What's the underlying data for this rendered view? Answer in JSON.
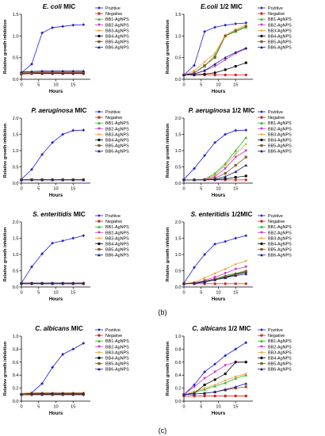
{
  "figure": {
    "panel_labels": [
      "(b)",
      "(c)"
    ]
  },
  "legend_labels": [
    "Pozitive",
    "Negative",
    "BB1-AgNPS",
    "BB2-AgNPS",
    "BB3-AgNPS",
    "BB4-AgNPS",
    "BB5-AgNPS",
    "BB6-AgNPS"
  ],
  "colors": {
    "Pozitive": "#1f1fe0",
    "Negative": "#e02020",
    "BB1-AgNPS": "#22bb22",
    "BB2-AgNPS": "#cc33cc",
    "BB3-AgNPS": "#f0a030",
    "BB4-AgNPS": "#111111",
    "BB5-AgNPS": "#8b5a2b",
    "BB6-AgNPS": "#1a1a8c"
  },
  "chart_data": [
    {
      "type": "line",
      "title_italic": "E. coli",
      "title_rest": " MIC",
      "xlabel": "Hours",
      "ylabel": "Relative growth inhibition",
      "xlim": [
        0,
        20
      ],
      "ylim": [
        0,
        1.5
      ],
      "xticks": [
        0,
        5,
        10,
        15
      ],
      "yticks": [
        0.0,
        0.5,
        1.0,
        1.5
      ],
      "xticklabels": [
        "0",
        "5",
        "10",
        "15"
      ],
      "yticklabels": [
        "0.0",
        "0.5",
        "1.0",
        "1.5"
      ],
      "x": [
        0,
        3,
        6,
        9,
        12,
        15,
        18
      ],
      "series": [
        {
          "name": "Pozitive",
          "values": [
            0.15,
            0.35,
            1.07,
            1.19,
            1.22,
            1.25,
            1.26
          ]
        },
        {
          "name": "Negative",
          "values": [
            0.12,
            0.13,
            0.13,
            0.13,
            0.13,
            0.13,
            0.13
          ]
        },
        {
          "name": "BB1-AgNPS",
          "values": [
            0.15,
            0.16,
            0.17,
            0.17,
            0.17,
            0.17,
            0.17
          ]
        },
        {
          "name": "BB2-AgNPS",
          "values": [
            0.14,
            0.15,
            0.15,
            0.15,
            0.15,
            0.15,
            0.15
          ]
        },
        {
          "name": "BB3-AgNPS",
          "values": [
            0.16,
            0.17,
            0.18,
            0.18,
            0.18,
            0.18,
            0.18
          ]
        },
        {
          "name": "BB4-AgNPS",
          "values": [
            0.13,
            0.14,
            0.14,
            0.14,
            0.14,
            0.14,
            0.14
          ]
        },
        {
          "name": "BB5-AgNPS",
          "values": [
            0.14,
            0.15,
            0.16,
            0.16,
            0.16,
            0.16,
            0.16
          ]
        },
        {
          "name": "BB6-AgNPS",
          "values": [
            0.17,
            0.18,
            0.19,
            0.19,
            0.19,
            0.19,
            0.19
          ]
        }
      ]
    },
    {
      "type": "line",
      "title_italic": "E.coli",
      "title_rest": " 1/2 MIC",
      "xlabel": "Hours",
      "ylabel": "Relative growth inhibition",
      "xlim": [
        0,
        20
      ],
      "ylim": [
        0,
        1.5
      ],
      "xticks": [
        0,
        5,
        10,
        15
      ],
      "yticks": [
        0.0,
        0.5,
        1.0,
        1.5
      ],
      "xticklabels": [
        "0",
        "5",
        "10",
        "15"
      ],
      "yticklabels": [
        "0.0",
        "0.5",
        "1.0",
        "1.5"
      ],
      "x": [
        0,
        3,
        6,
        9,
        12,
        15,
        18
      ],
      "series": [
        {
          "name": "Pozitive",
          "values": [
            0.1,
            0.32,
            1.1,
            1.2,
            1.25,
            1.28,
            1.3
          ]
        },
        {
          "name": "Negative",
          "values": [
            0.1,
            0.1,
            0.1,
            0.1,
            0.1,
            0.1,
            0.1
          ]
        },
        {
          "name": "BB1-AgNPS",
          "values": [
            0.1,
            0.15,
            0.3,
            0.55,
            1.0,
            1.1,
            1.2
          ]
        },
        {
          "name": "BB2-AgNPS",
          "values": [
            0.1,
            0.12,
            0.2,
            0.3,
            0.45,
            0.6,
            0.7
          ]
        },
        {
          "name": "BB3-AgNPS",
          "values": [
            0.1,
            0.2,
            0.4,
            0.6,
            1.02,
            1.15,
            1.25
          ]
        },
        {
          "name": "BB4-AgNPS",
          "values": [
            0.1,
            0.1,
            0.12,
            0.15,
            0.22,
            0.3,
            0.38
          ]
        },
        {
          "name": "BB5-AgNPS",
          "values": [
            0.1,
            0.15,
            0.32,
            0.5,
            1.0,
            1.12,
            1.22
          ]
        },
        {
          "name": "BB6-AgNPS",
          "values": [
            0.1,
            0.12,
            0.2,
            0.35,
            0.5,
            0.62,
            0.72
          ]
        }
      ]
    },
    {
      "type": "line",
      "title_italic": "P. aeruginosa",
      "title_rest": " MIC",
      "xlabel": "Hours",
      "ylabel": "Relative growth inhibition",
      "xlim": [
        0,
        20
      ],
      "ylim": [
        0,
        2.0
      ],
      "xticks": [
        0,
        5,
        10,
        15
      ],
      "yticks": [
        0.0,
        0.5,
        1.0,
        1.5,
        2.0
      ],
      "xticklabels": [
        "0",
        "5",
        "10",
        "15"
      ],
      "yticklabels": [
        "0.0",
        "0.5",
        "1.0",
        "1.5",
        "2.0"
      ],
      "x": [
        0,
        3,
        6,
        9,
        12,
        15,
        18
      ],
      "series": [
        {
          "name": "Pozitive",
          "values": [
            0.12,
            0.42,
            0.88,
            1.25,
            1.5,
            1.62,
            1.63
          ]
        },
        {
          "name": "Negative",
          "values": [
            0.1,
            0.1,
            0.1,
            0.1,
            0.1,
            0.1,
            0.1
          ]
        },
        {
          "name": "BB1-AgNPS",
          "values": [
            0.11,
            0.11,
            0.11,
            0.11,
            0.11,
            0.11,
            0.11
          ]
        },
        {
          "name": "BB2-AgNPS",
          "values": [
            0.1,
            0.1,
            0.1,
            0.1,
            0.1,
            0.1,
            0.1
          ]
        },
        {
          "name": "BB3-AgNPS",
          "values": [
            0.11,
            0.11,
            0.11,
            0.11,
            0.11,
            0.11,
            0.11
          ]
        },
        {
          "name": "BB4-AgNPS",
          "values": [
            0.1,
            0.1,
            0.1,
            0.1,
            0.1,
            0.1,
            0.1
          ]
        },
        {
          "name": "BB5-AgNPS",
          "values": [
            0.11,
            0.11,
            0.11,
            0.11,
            0.11,
            0.11,
            0.11
          ]
        },
        {
          "name": "BB6-AgNPS",
          "values": [
            0.1,
            0.1,
            0.1,
            0.1,
            0.1,
            0.1,
            0.1
          ]
        }
      ]
    },
    {
      "type": "line",
      "title_italic": "P. aeruginosa",
      "title_rest": " 1/2 MIC",
      "xlabel": "Hours",
      "ylabel": "Relative growth inhibition",
      "xlim": [
        0,
        20
      ],
      "ylim": [
        0,
        2.0
      ],
      "xticks": [
        0,
        5,
        10,
        15
      ],
      "yticks": [
        0.0,
        0.5,
        1.0,
        1.5,
        2.0
      ],
      "xticklabels": [
        "0",
        "5",
        "10",
        "15"
      ],
      "yticklabels": [
        "0.0",
        "0.5",
        "1.0",
        "1.5",
        "2.0"
      ],
      "x": [
        0,
        3,
        6,
        9,
        12,
        15,
        18
      ],
      "series": [
        {
          "name": "Pozitive",
          "values": [
            0.12,
            0.45,
            0.85,
            1.25,
            1.5,
            1.62,
            1.63
          ]
        },
        {
          "name": "Negative",
          "values": [
            0.1,
            0.1,
            0.1,
            0.1,
            0.1,
            0.1,
            0.1
          ]
        },
        {
          "name": "BB1-AgNPS",
          "values": [
            0.1,
            0.1,
            0.12,
            0.3,
            0.6,
            1.0,
            1.4
          ]
        },
        {
          "name": "BB2-AgNPS",
          "values": [
            0.1,
            0.1,
            0.11,
            0.2,
            0.45,
            0.8,
            1.0
          ]
        },
        {
          "name": "BB3-AgNPS",
          "values": [
            0.1,
            0.1,
            0.12,
            0.25,
            0.55,
            0.9,
            1.2
          ]
        },
        {
          "name": "BB4-AgNPS",
          "values": [
            0.1,
            0.1,
            0.1,
            0.11,
            0.13,
            0.18,
            0.22
          ]
        },
        {
          "name": "BB5-AgNPS",
          "values": [
            0.1,
            0.1,
            0.11,
            0.15,
            0.3,
            0.55,
            0.8
          ]
        },
        {
          "name": "BB6-AgNPS",
          "values": [
            0.1,
            0.1,
            0.1,
            0.12,
            0.2,
            0.35,
            0.55
          ]
        }
      ]
    },
    {
      "type": "line",
      "title_italic": "S. enteritidis",
      "title_rest": " MIC",
      "xlabel": "Hours",
      "ylabel": "Relative growth inhibition",
      "xlim": [
        0,
        20
      ],
      "ylim": [
        0,
        2.0
      ],
      "xticks": [
        0,
        5,
        10,
        15
      ],
      "yticks": [
        0.0,
        0.5,
        1.0,
        1.5,
        2.0
      ],
      "xticklabels": [
        "0",
        "5",
        "10",
        "15"
      ],
      "yticklabels": [
        "0.0",
        "0.5",
        "1.0",
        "1.5",
        "2.0"
      ],
      "x": [
        0,
        3,
        6,
        9,
        12,
        15,
        18
      ],
      "series": [
        {
          "name": "Pozitive",
          "values": [
            0.12,
            0.62,
            1.02,
            1.35,
            1.42,
            1.5,
            1.58
          ]
        },
        {
          "name": "Negative",
          "values": [
            0.1,
            0.1,
            0.1,
            0.1,
            0.1,
            0.1,
            0.1
          ]
        },
        {
          "name": "BB1-AgNPS",
          "values": [
            0.11,
            0.11,
            0.11,
            0.11,
            0.11,
            0.11,
            0.11
          ]
        },
        {
          "name": "BB2-AgNPS",
          "values": [
            0.1,
            0.1,
            0.1,
            0.1,
            0.1,
            0.1,
            0.1
          ]
        },
        {
          "name": "BB3-AgNPS",
          "values": [
            0.12,
            0.12,
            0.12,
            0.12,
            0.12,
            0.12,
            0.12
          ]
        },
        {
          "name": "BB4-AgNPS",
          "values": [
            0.1,
            0.1,
            0.1,
            0.1,
            0.1,
            0.1,
            0.1
          ]
        },
        {
          "name": "BB5-AgNPS",
          "values": [
            0.11,
            0.11,
            0.11,
            0.11,
            0.11,
            0.11,
            0.11
          ]
        },
        {
          "name": "BB6-AgNPS",
          "values": [
            0.12,
            0.12,
            0.12,
            0.12,
            0.12,
            0.12,
            0.12
          ]
        }
      ]
    },
    {
      "type": "line",
      "title_italic": "S. enteritidis",
      "title_rest": " 1/2MIC",
      "xlabel": "Hours",
      "ylabel": "Relative growth inhibition",
      "xlim": [
        0,
        20
      ],
      "ylim": [
        0,
        2.0
      ],
      "xticks": [
        0,
        5,
        10,
        15
      ],
      "yticks": [
        0.0,
        0.5,
        1.0,
        1.5,
        2.0
      ],
      "xticklabels": [
        "0",
        "5",
        "10",
        "15"
      ],
      "yticklabels": [
        "0.0",
        "0.5",
        "1.0",
        "1.5",
        "2.0"
      ],
      "x": [
        0,
        3,
        6,
        9,
        12,
        15,
        18
      ],
      "series": [
        {
          "name": "Pozitive",
          "values": [
            0.12,
            0.6,
            1.0,
            1.32,
            1.4,
            1.5,
            1.58
          ]
        },
        {
          "name": "Negative",
          "values": [
            0.1,
            0.1,
            0.1,
            0.1,
            0.1,
            0.1,
            0.1
          ]
        },
        {
          "name": "BB1-AgNPS",
          "values": [
            0.1,
            0.12,
            0.18,
            0.25,
            0.35,
            0.42,
            0.5
          ]
        },
        {
          "name": "BB2-AgNPS",
          "values": [
            0.1,
            0.13,
            0.2,
            0.3,
            0.42,
            0.55,
            0.62
          ]
        },
        {
          "name": "BB3-AgNPS",
          "values": [
            0.1,
            0.15,
            0.28,
            0.42,
            0.55,
            0.7,
            0.8
          ]
        },
        {
          "name": "BB4-AgNPS",
          "values": [
            0.1,
            0.11,
            0.15,
            0.22,
            0.3,
            0.38,
            0.45
          ]
        },
        {
          "name": "BB5-AgNPS",
          "values": [
            0.1,
            0.12,
            0.17,
            0.24,
            0.32,
            0.4,
            0.48
          ]
        },
        {
          "name": "BB6-AgNPS",
          "values": [
            0.1,
            0.11,
            0.16,
            0.22,
            0.28,
            0.35,
            0.4
          ]
        }
      ]
    },
    {
      "type": "line",
      "title_italic": "C. albicans",
      "title_rest": " MIC",
      "xlabel": "Hours",
      "ylabel": "Relative growth inhibition",
      "xlim": [
        0,
        20
      ],
      "ylim": [
        0,
        1.0
      ],
      "xticks": [
        0,
        5,
        10,
        15
      ],
      "yticks": [
        0.0,
        0.2,
        0.4,
        0.6,
        0.8,
        1.0
      ],
      "xticklabels": [
        "0",
        "5",
        "10",
        "15"
      ],
      "yticklabels": [
        "0.0",
        "0.2",
        "0.4",
        "0.6",
        "0.8",
        "1.0"
      ],
      "x": [
        0,
        3,
        6,
        9,
        12,
        15,
        18
      ],
      "series": [
        {
          "name": "Pozitive",
          "values": [
            0.1,
            0.13,
            0.27,
            0.52,
            0.72,
            0.8,
            0.89
          ]
        },
        {
          "name": "Negative",
          "values": [
            0.1,
            0.1,
            0.1,
            0.1,
            0.1,
            0.1,
            0.1
          ]
        },
        {
          "name": "BB1-AgNPS",
          "values": [
            0.11,
            0.12,
            0.12,
            0.12,
            0.12,
            0.12,
            0.12
          ]
        },
        {
          "name": "BB2-AgNPS",
          "values": [
            0.1,
            0.11,
            0.11,
            0.11,
            0.11,
            0.11,
            0.11
          ]
        },
        {
          "name": "BB3-AgNPS",
          "values": [
            0.12,
            0.13,
            0.13,
            0.13,
            0.13,
            0.13,
            0.13
          ]
        },
        {
          "name": "BB4-AgNPS",
          "values": [
            0.1,
            0.1,
            0.1,
            0.1,
            0.1,
            0.1,
            0.1
          ]
        },
        {
          "name": "BB5-AgNPS",
          "values": [
            0.1,
            0.11,
            0.11,
            0.11,
            0.11,
            0.11,
            0.11
          ]
        },
        {
          "name": "BB6-AgNPS",
          "values": [
            0.11,
            0.12,
            0.12,
            0.12,
            0.12,
            0.12,
            0.12
          ]
        }
      ]
    },
    {
      "type": "line",
      "title_italic": "C. albicans",
      "title_rest": " 1/2 MIC",
      "xlabel": "Hours",
      "ylabel": "Relative growth inhibition",
      "xlim": [
        0,
        20
      ],
      "ylim": [
        0,
        1.0
      ],
      "xticks": [
        0,
        5,
        10,
        15
      ],
      "yticks": [
        0.0,
        0.2,
        0.4,
        0.6,
        0.8,
        1.0
      ],
      "xticklabels": [
        "0",
        "5",
        "10",
        "15"
      ],
      "yticklabels": [
        "0.0",
        "0.2",
        "0.4",
        "0.6",
        "0.8",
        "1.0"
      ],
      "x": [
        0,
        3,
        6,
        9,
        12,
        15,
        18
      ],
      "series": [
        {
          "name": "Pozitive",
          "values": [
            0.1,
            0.25,
            0.45,
            0.57,
            0.7,
            0.8,
            0.9
          ]
        },
        {
          "name": "Negative",
          "values": [
            0.08,
            0.08,
            0.08,
            0.08,
            0.08,
            0.08,
            0.08
          ]
        },
        {
          "name": "BB1-AgNPS",
          "values": [
            0.1,
            0.13,
            0.18,
            0.23,
            0.28,
            0.35,
            0.4
          ]
        },
        {
          "name": "BB2-AgNPS",
          "values": [
            0.1,
            0.22,
            0.35,
            0.45,
            0.55,
            0.6,
            0.6
          ]
        },
        {
          "name": "BB3-AgNPS",
          "values": [
            0.1,
            0.15,
            0.2,
            0.25,
            0.32,
            0.38,
            0.42
          ]
        },
        {
          "name": "BB4-AgNPS",
          "values": [
            0.1,
            0.12,
            0.25,
            0.33,
            0.42,
            0.6,
            0.6
          ]
        },
        {
          "name": "BB5-AgNPS",
          "values": [
            0.1,
            0.11,
            0.12,
            0.14,
            0.17,
            0.2,
            0.22
          ]
        },
        {
          "name": "BB6-AgNPS",
          "values": [
            0.1,
            0.11,
            0.12,
            0.14,
            0.18,
            0.22,
            0.27
          ]
        }
      ]
    }
  ]
}
